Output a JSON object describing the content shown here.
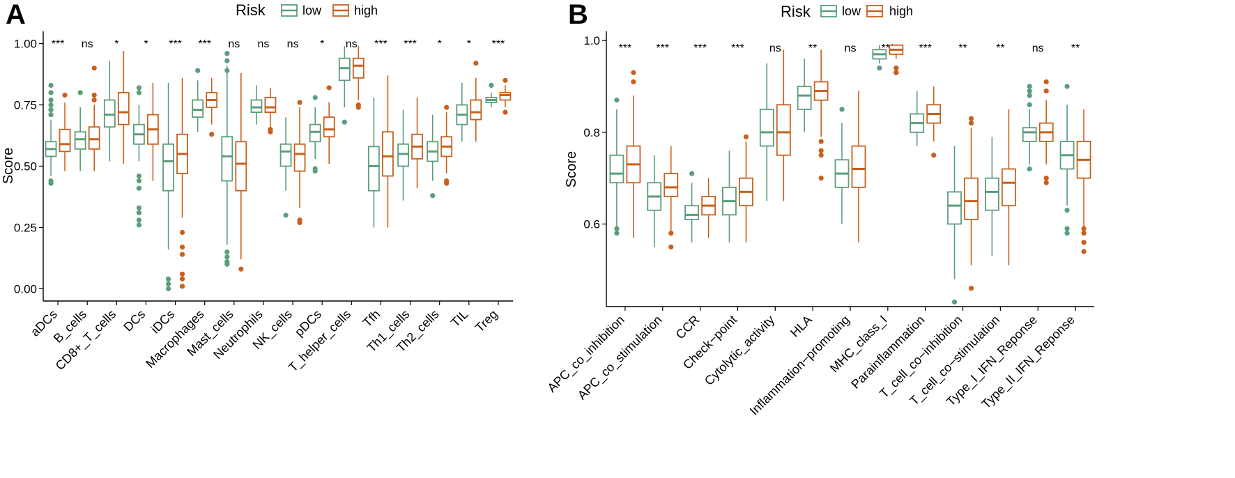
{
  "colors": {
    "low": "#5a9e7a",
    "high": "#c8601d"
  },
  "chart_data": [
    {
      "type": "box",
      "panel_label": "A",
      "legend": {
        "title": "Risk",
        "entries": [
          "low",
          "high"
        ]
      },
      "ylabel": "Score",
      "ylim": [
        -0.05,
        1.05
      ],
      "yticks": [
        "0.00",
        "0.25",
        "0.50",
        "0.75",
        "1.00"
      ],
      "categories": [
        "aDCs",
        "B_cells",
        "CD8+_T_cells",
        "DCs",
        "iDCs",
        "Macrophages",
        "Mast_cells",
        "Neutrophils",
        "NK_cells",
        "pDCs",
        "T_helper_cells",
        "Tfh",
        "Th1_cells",
        "Th2_cells",
        "TIL",
        "Treg"
      ],
      "significance": [
        "***",
        "ns",
        "*",
        "*",
        "***",
        "***",
        "ns",
        "ns",
        "ns",
        "*",
        "ns",
        "***",
        "***",
        "*",
        "*",
        "***"
      ],
      "series": [
        {
          "name": "low",
          "boxes": [
            {
              "whislo": 0.46,
              "q1": 0.54,
              "med": 0.57,
              "q3": 0.6,
              "whishi": 0.69,
              "outliers": [
                0.83,
                0.8,
                0.77,
                0.75,
                0.73,
                0.71,
                0.44,
                0.43
              ]
            },
            {
              "whislo": 0.48,
              "q1": 0.57,
              "med": 0.61,
              "q3": 0.64,
              "whishi": 0.74,
              "outliers": [
                0.8
              ]
            },
            {
              "whislo": 0.52,
              "q1": 0.66,
              "med": 0.71,
              "q3": 0.77,
              "whishi": 0.93,
              "outliers": []
            },
            {
              "whislo": 0.52,
              "q1": 0.59,
              "med": 0.63,
              "q3": 0.67,
              "whishi": 0.75,
              "outliers": [
                0.82,
                0.8,
                0.46,
                0.44,
                0.41,
                0.33,
                0.31,
                0.28,
                0.26
              ]
            },
            {
              "whislo": 0.16,
              "q1": 0.4,
              "med": 0.52,
              "q3": 0.59,
              "whishi": 0.84,
              "outliers": [
                0.04,
                0.02,
                0.0
              ]
            },
            {
              "whislo": 0.64,
              "q1": 0.7,
              "med": 0.73,
              "q3": 0.77,
              "whishi": 0.85,
              "outliers": [
                0.89
              ]
            },
            {
              "whislo": 0.18,
              "q1": 0.44,
              "med": 0.54,
              "q3": 0.62,
              "whishi": 0.91,
              "outliers": [
                0.96,
                0.93,
                0.89,
                0.15,
                0.13,
                0.11,
                0.1
              ]
            },
            {
              "whislo": 0.67,
              "q1": 0.72,
              "med": 0.74,
              "q3": 0.77,
              "whishi": 0.83,
              "outliers": []
            },
            {
              "whislo": 0.4,
              "q1": 0.5,
              "med": 0.56,
              "q3": 0.59,
              "whishi": 0.7,
              "outliers": [
                0.3
              ]
            },
            {
              "whislo": 0.53,
              "q1": 0.6,
              "med": 0.64,
              "q3": 0.67,
              "whishi": 0.74,
              "outliers": [
                0.78,
                0.49,
                0.48
              ]
            },
            {
              "whislo": 0.74,
              "q1": 0.85,
              "med": 0.9,
              "q3": 0.94,
              "whishi": 0.99,
              "outliers": [
                0.68
              ]
            },
            {
              "whislo": 0.25,
              "q1": 0.4,
              "med": 0.5,
              "q3": 0.58,
              "whishi": 0.78,
              "outliers": []
            },
            {
              "whislo": 0.36,
              "q1": 0.5,
              "med": 0.55,
              "q3": 0.59,
              "whishi": 0.73,
              "outliers": []
            },
            {
              "whislo": 0.44,
              "q1": 0.52,
              "med": 0.56,
              "q3": 0.6,
              "whishi": 0.71,
              "outliers": [
                0.38
              ]
            },
            {
              "whislo": 0.6,
              "q1": 0.67,
              "med": 0.71,
              "q3": 0.75,
              "whishi": 0.84,
              "outliers": []
            },
            {
              "whislo": 0.74,
              "q1": 0.76,
              "med": 0.77,
              "q3": 0.78,
              "whishi": 0.8,
              "outliers": [
                0.83
              ]
            }
          ]
        },
        {
          "name": "high",
          "boxes": [
            {
              "whislo": 0.48,
              "q1": 0.56,
              "med": 0.59,
              "q3": 0.65,
              "whishi": 0.76,
              "outliers": [
                0.79
              ]
            },
            {
              "whislo": 0.48,
              "q1": 0.57,
              "med": 0.61,
              "q3": 0.66,
              "whishi": 0.75,
              "outliers": [
                0.9,
                0.79,
                0.77
              ]
            },
            {
              "whislo": 0.51,
              "q1": 0.67,
              "med": 0.72,
              "q3": 0.8,
              "whishi": 0.97,
              "outliers": []
            },
            {
              "whislo": 0.44,
              "q1": 0.59,
              "med": 0.65,
              "q3": 0.71,
              "whishi": 0.84,
              "outliers": []
            },
            {
              "whislo": 0.29,
              "q1": 0.47,
              "med": 0.55,
              "q3": 0.63,
              "whishi": 0.86,
              "outliers": [
                0.23,
                0.17,
                0.14,
                0.06,
                0.04,
                0.01
              ]
            },
            {
              "whislo": 0.67,
              "q1": 0.74,
              "med": 0.77,
              "q3": 0.8,
              "whishi": 0.86,
              "outliers": [
                0.63
              ]
            },
            {
              "whislo": 0.12,
              "q1": 0.4,
              "med": 0.51,
              "q3": 0.6,
              "whishi": 0.88,
              "outliers": [
                0.08
              ]
            },
            {
              "whislo": 0.66,
              "q1": 0.72,
              "med": 0.74,
              "q3": 0.78,
              "whishi": 0.82,
              "outliers": [
                0.65,
                0.64
              ]
            },
            {
              "whislo": 0.33,
              "q1": 0.48,
              "med": 0.55,
              "q3": 0.59,
              "whishi": 0.74,
              "outliers": [
                0.76,
                0.28,
                0.27
              ]
            },
            {
              "whislo": 0.51,
              "q1": 0.62,
              "med": 0.65,
              "q3": 0.7,
              "whishi": 0.76,
              "outliers": [
                0.82
              ]
            },
            {
              "whislo": 0.77,
              "q1": 0.86,
              "med": 0.91,
              "q3": 0.94,
              "whishi": 0.99,
              "outliers": [
                0.75,
                0.74
              ]
            },
            {
              "whislo": 0.25,
              "q1": 0.46,
              "med": 0.54,
              "q3": 0.64,
              "whishi": 0.87,
              "outliers": []
            },
            {
              "whislo": 0.41,
              "q1": 0.53,
              "med": 0.58,
              "q3": 0.63,
              "whishi": 0.78,
              "outliers": []
            },
            {
              "whislo": 0.47,
              "q1": 0.54,
              "med": 0.58,
              "q3": 0.62,
              "whishi": 0.72,
              "outliers": [
                0.74,
                0.44,
                0.43
              ]
            },
            {
              "whislo": 0.6,
              "q1": 0.69,
              "med": 0.72,
              "q3": 0.77,
              "whishi": 0.86,
              "outliers": [
                0.92
              ]
            },
            {
              "whislo": 0.74,
              "q1": 0.77,
              "med": 0.79,
              "q3": 0.8,
              "whishi": 0.83,
              "outliers": [
                0.85,
                0.72
              ]
            }
          ]
        }
      ]
    },
    {
      "type": "box",
      "panel_label": "B",
      "legend": {
        "title": "Risk",
        "entries": [
          "low",
          "high"
        ]
      },
      "ylabel": "Score",
      "ylim": [
        0.42,
        1.02
      ],
      "yticks": [
        "0.6",
        "0.8",
        "1.0"
      ],
      "categories": [
        "APC_co_inhibition",
        "APC_co_stimulation",
        "CCR",
        "Check−point",
        "Cytolytic_activity",
        "HLA",
        "Inflammation−promoting",
        "MHC_class_I",
        "Parainflammation",
        "T_cell_co−inhibition",
        "T_cell_co−stimulation",
        "Type_I_IFN_Reponse",
        "Type_II_IFN_Reponse"
      ],
      "significance": [
        "***",
        "***",
        "***",
        "***",
        "ns",
        "**",
        "ns",
        "***",
        "***",
        "**",
        "**",
        "ns",
        "**"
      ],
      "series": [
        {
          "name": "low",
          "boxes": [
            {
              "whislo": 0.59,
              "q1": 0.69,
              "med": 0.71,
              "q3": 0.75,
              "whishi": 0.85,
              "outliers": [
                0.87,
                0.59,
                0.58
              ]
            },
            {
              "whislo": 0.55,
              "q1": 0.63,
              "med": 0.66,
              "q3": 0.69,
              "whishi": 0.75,
              "outliers": []
            },
            {
              "whislo": 0.56,
              "q1": 0.61,
              "med": 0.62,
              "q3": 0.64,
              "whishi": 0.69,
              "outliers": [
                0.71
              ]
            },
            {
              "whislo": 0.56,
              "q1": 0.62,
              "med": 0.65,
              "q3": 0.68,
              "whishi": 0.76,
              "outliers": []
            },
            {
              "whislo": 0.65,
              "q1": 0.77,
              "med": 0.8,
              "q3": 0.85,
              "whishi": 0.95,
              "outliers": []
            },
            {
              "whislo": 0.8,
              "q1": 0.85,
              "med": 0.88,
              "q3": 0.9,
              "whishi": 0.96,
              "outliers": []
            },
            {
              "whislo": 0.6,
              "q1": 0.68,
              "med": 0.71,
              "q3": 0.74,
              "whishi": 0.82,
              "outliers": [
                0.85
              ]
            },
            {
              "whislo": 0.95,
              "q1": 0.96,
              "med": 0.97,
              "q3": 0.98,
              "whishi": 0.99,
              "outliers": [
                0.94
              ]
            },
            {
              "whislo": 0.77,
              "q1": 0.8,
              "med": 0.82,
              "q3": 0.84,
              "whishi": 0.89,
              "outliers": []
            },
            {
              "whislo": 0.48,
              "q1": 0.6,
              "med": 0.64,
              "q3": 0.67,
              "whishi": 0.77,
              "outliers": [
                0.43
              ]
            },
            {
              "whislo": 0.53,
              "q1": 0.63,
              "med": 0.67,
              "q3": 0.7,
              "whishi": 0.79,
              "outliers": []
            },
            {
              "whislo": 0.73,
              "q1": 0.78,
              "med": 0.8,
              "q3": 0.81,
              "whishi": 0.85,
              "outliers": [
                0.9,
                0.89,
                0.88,
                0.86,
                0.72
              ]
            },
            {
              "whislo": 0.64,
              "q1": 0.72,
              "med": 0.75,
              "q3": 0.78,
              "whishi": 0.86,
              "outliers": [
                0.9,
                0.63,
                0.59,
                0.58
              ]
            }
          ]
        },
        {
          "name": "high",
          "boxes": [
            {
              "whislo": 0.57,
              "q1": 0.69,
              "med": 0.73,
              "q3": 0.77,
              "whishi": 0.88,
              "outliers": [
                0.93,
                0.91
              ]
            },
            {
              "whislo": 0.58,
              "q1": 0.66,
              "med": 0.68,
              "q3": 0.71,
              "whishi": 0.77,
              "outliers": [
                0.58,
                0.55
              ]
            },
            {
              "whislo": 0.57,
              "q1": 0.62,
              "med": 0.64,
              "q3": 0.66,
              "whishi": 0.7,
              "outliers": []
            },
            {
              "whislo": 0.56,
              "q1": 0.64,
              "med": 0.67,
              "q3": 0.7,
              "whishi": 0.78,
              "outliers": [
                0.79
              ]
            },
            {
              "whislo": 0.65,
              "q1": 0.75,
              "med": 0.8,
              "q3": 0.86,
              "whishi": 0.98,
              "outliers": []
            },
            {
              "whislo": 0.79,
              "q1": 0.87,
              "med": 0.89,
              "q3": 0.91,
              "whishi": 0.98,
              "outliers": [
                0.78,
                0.76,
                0.75,
                0.7
              ]
            },
            {
              "whislo": 0.56,
              "q1": 0.68,
              "med": 0.72,
              "q3": 0.77,
              "whishi": 0.89,
              "outliers": []
            },
            {
              "whislo": 0.96,
              "q1": 0.97,
              "med": 0.98,
              "q3": 0.99,
              "whishi": 0.99,
              "outliers": [
                0.94,
                0.94,
                0.93,
                0.93,
                0.93
              ]
            },
            {
              "whislo": 0.78,
              "q1": 0.82,
              "med": 0.84,
              "q3": 0.86,
              "whishi": 0.9,
              "outliers": [
                0.75
              ]
            },
            {
              "whislo": 0.51,
              "q1": 0.61,
              "med": 0.65,
              "q3": 0.7,
              "whishi": 0.81,
              "outliers": [
                0.83,
                0.82,
                0.46
              ]
            },
            {
              "whislo": 0.51,
              "q1": 0.64,
              "med": 0.69,
              "q3": 0.72,
              "whishi": 0.85,
              "outliers": []
            },
            {
              "whislo": 0.73,
              "q1": 0.78,
              "med": 0.8,
              "q3": 0.82,
              "whishi": 0.87,
              "outliers": [
                0.91,
                0.89,
                0.7,
                0.69
              ]
            },
            {
              "whislo": 0.59,
              "q1": 0.7,
              "med": 0.74,
              "q3": 0.78,
              "whishi": 0.85,
              "outliers": [
                0.59,
                0.58,
                0.56,
                0.54
              ]
            }
          ]
        }
      ]
    }
  ]
}
